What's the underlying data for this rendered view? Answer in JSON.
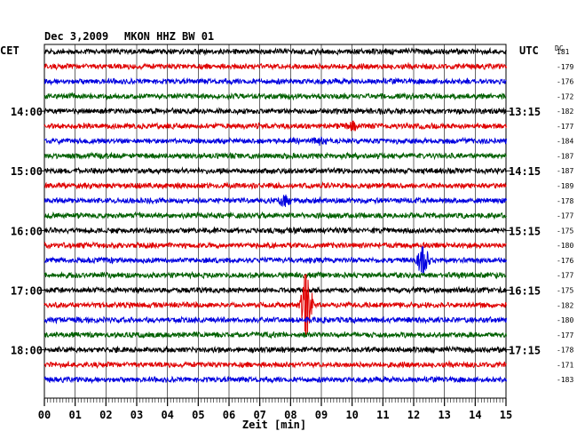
{
  "header": {
    "date": "Dec 3,2009",
    "station": "MKON HHZ BW 01",
    "left_zone": "CET",
    "right_zone": "UTC",
    "dc_label": "DC"
  },
  "chart_data": {
    "type": "line",
    "title": "Dec 3,2009   MKON HHZ BW 01",
    "xlabel": "Zeit [min]",
    "xlim": [
      0,
      15
    ],
    "x_ticks": [
      "00",
      "01",
      "02",
      "03",
      "04",
      "05",
      "06",
      "07",
      "08",
      "09",
      "10",
      "11",
      "12",
      "13",
      "14",
      "15"
    ],
    "grid": true,
    "trace_colors": [
      "#000000",
      "#e00000",
      "#0000e0",
      "#006000"
    ],
    "left_time_labels": [
      "14:00",
      "15:00",
      "16:00",
      "17:00",
      "18:00"
    ],
    "right_time_labels": [
      "13:15",
      "14:15",
      "15:15",
      "16:15",
      "17:15"
    ],
    "hour_label_rows": [
      4,
      8,
      12,
      16,
      20
    ],
    "dc_offsets": [
      181,
      -179,
      -176,
      -172,
      -182,
      -177,
      -184,
      -187,
      -187,
      -189,
      -178,
      -177,
      -175,
      -180,
      -176,
      -177,
      -175,
      -182,
      -180,
      -177,
      -178,
      -171,
      -183
    ],
    "events": [
      {
        "row": 5,
        "minute": 10.0,
        "amplitude": 0.5
      },
      {
        "row": 6,
        "minute": 8.9,
        "amplitude": 0.4
      },
      {
        "row": 10,
        "minute": 7.8,
        "amplitude": 0.7
      },
      {
        "row": 14,
        "minute": 12.3,
        "amplitude": 2.2
      },
      {
        "row": 17,
        "minute": 8.5,
        "amplitude": 5.0
      }
    ]
  }
}
